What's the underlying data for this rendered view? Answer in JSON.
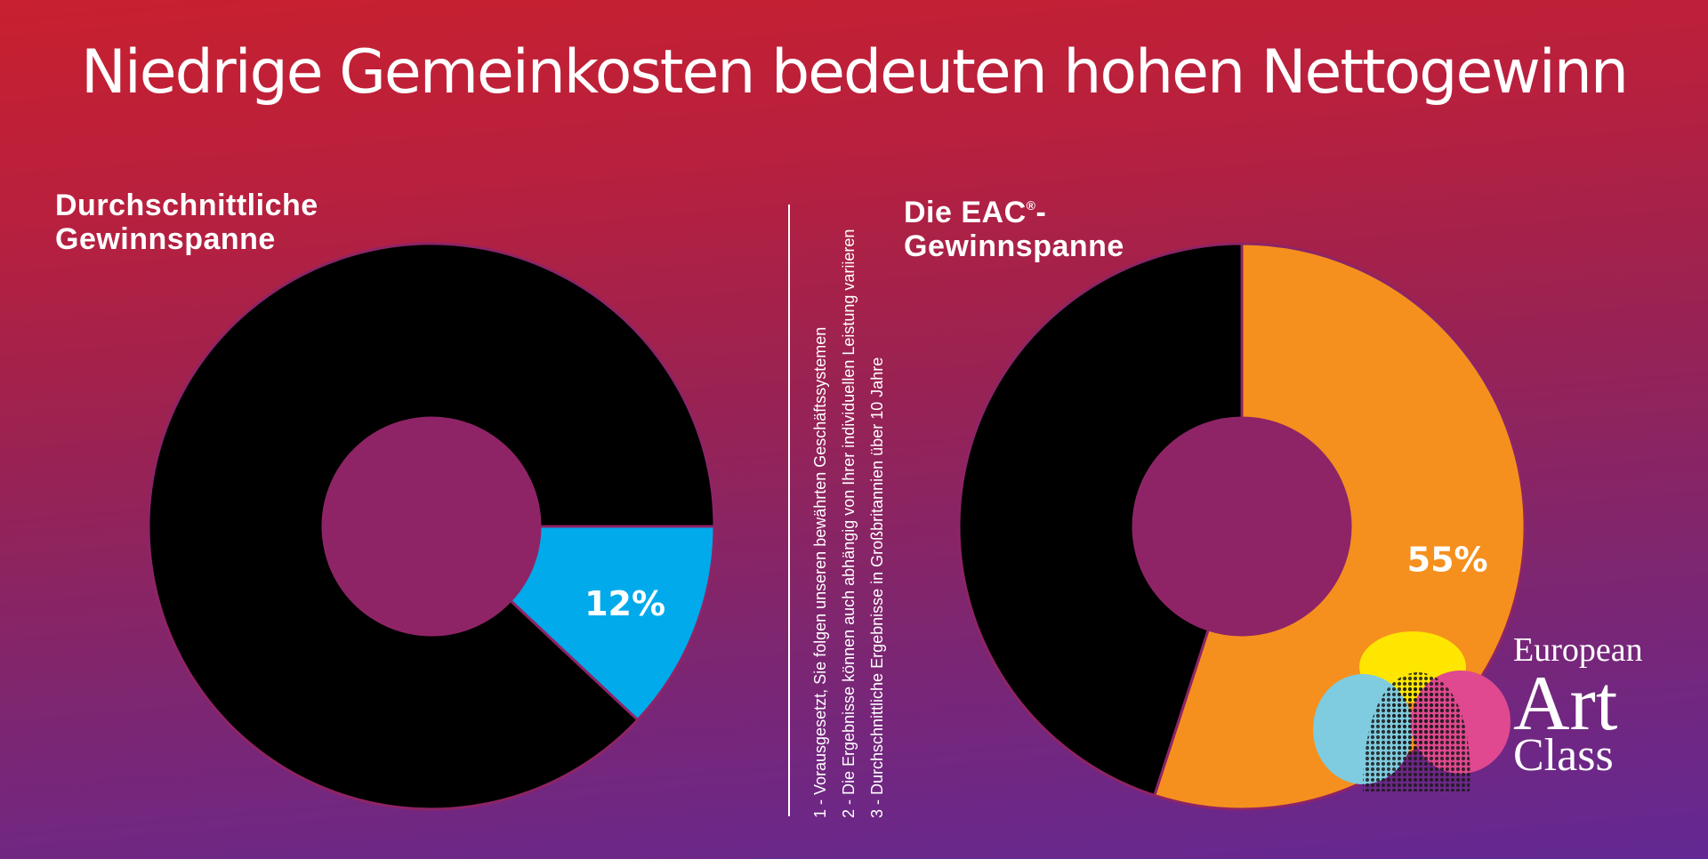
{
  "title": "Niedrige Gemeinkosten bedeuten hohen Nettogewinn",
  "chart_data": [
    {
      "type": "pie",
      "style": "donut",
      "title": "Durchschnittliche Gewinnspanne",
      "title_lines": [
        "Durchschnittliche",
        "Gewinnspanne"
      ],
      "slices": [
        {
          "value": 12,
          "label": "12%",
          "color": "#00aaeb"
        },
        {
          "value": 88,
          "label": "",
          "color": "#000000"
        }
      ],
      "start_angle_deg": 90,
      "direction": "clockwise"
    },
    {
      "type": "pie",
      "style": "donut",
      "title": "Die EAC®-Gewinnspanne",
      "title_lines": [
        "Die EAC",
        "®",
        "-",
        "Gewinnspanne"
      ],
      "slices": [
        {
          "value": 55,
          "label": "55%",
          "color": "#f5901e"
        },
        {
          "value": 45,
          "label": "",
          "color": "#000000"
        }
      ],
      "start_angle_deg": 0,
      "direction": "clockwise"
    }
  ],
  "footnotes": [
    "1 - Vorausgesetzt, Sie folgen unseren bewährten Geschäftssystemen",
    "2 - Die Ergebnisse können auch abhängig von Ihrer individuellen Leistung variieren",
    "3 - Durchschnittliche Ergebnisse in Großbritannien über 10 Jahre"
  ],
  "logo": {
    "line1": "European",
    "line2": "Art",
    "line3": "Class",
    "colors": {
      "yellow": "#ffe600",
      "pink": "#e0488f",
      "blue": "#7fcbe0"
    }
  },
  "colors": {
    "accent_blue": "#00aaeb",
    "accent_orange": "#f5901e",
    "hole": "#8e2466"
  }
}
